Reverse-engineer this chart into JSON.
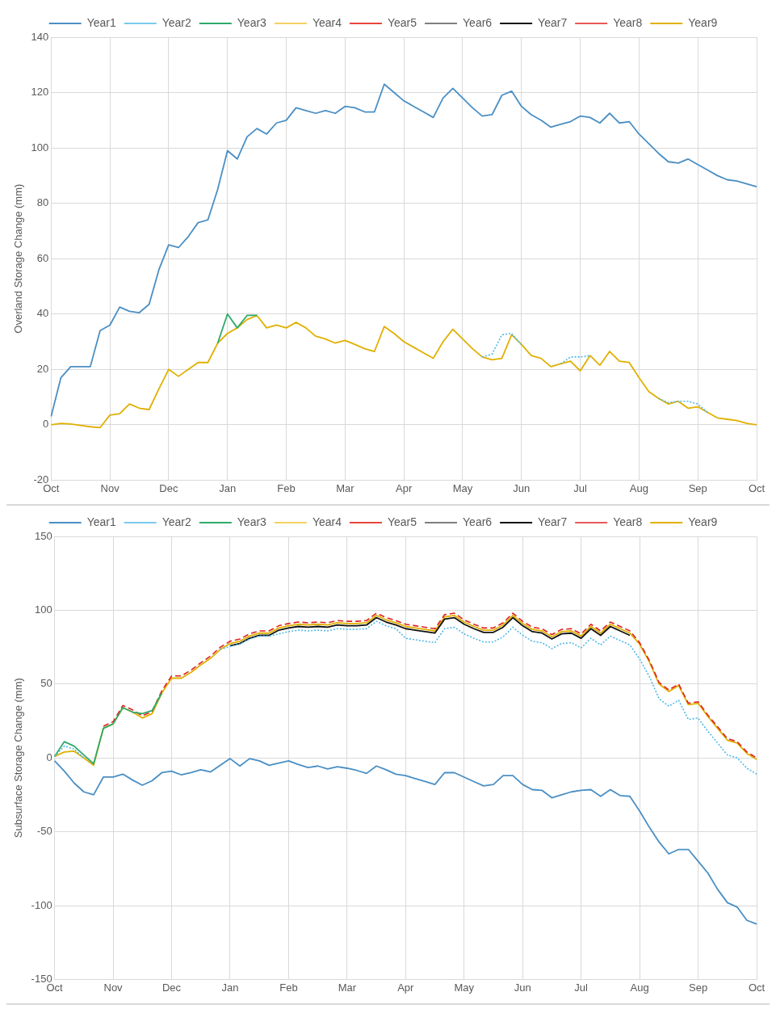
{
  "chart_data": [
    {
      "type": "line",
      "ylabel": "Overland Storage Change (mm)",
      "legend": "top",
      "grid": true,
      "categories": [
        "Oct",
        null,
        null,
        null,
        null,
        null,
        "Nov",
        null,
        null,
        null,
        null,
        null,
        "Dec",
        null,
        null,
        null,
        null,
        null,
        "Jan",
        null,
        null,
        null,
        null,
        null,
        "Feb",
        null,
        null,
        null,
        null,
        null,
        "Mar",
        null,
        null,
        null,
        null,
        null,
        "Apr",
        null,
        null,
        null,
        null,
        null,
        "May",
        null,
        null,
        null,
        null,
        null,
        "Jun",
        null,
        null,
        null,
        null,
        null,
        "Jul",
        null,
        null,
        null,
        null,
        null,
        "Aug",
        null,
        null,
        null,
        null,
        null,
        "Sep",
        null,
        null,
        null,
        null,
        null,
        "Oct"
      ],
      "ylim": [
        -20,
        140
      ],
      "yticks": [
        -20,
        0,
        20,
        40,
        60,
        80,
        100,
        120,
        140
      ],
      "series": [
        {
          "name": "Year1",
          "color": "#4a8fc4",
          "line_style": "solid",
          "values": [
            3,
            17,
            21,
            21,
            21,
            34,
            36,
            42.5,
            41,
            40.5,
            43.5,
            56,
            65,
            64,
            68,
            73,
            74,
            85,
            99,
            96,
            104,
            107,
            105,
            109,
            110,
            114.5,
            113.5,
            112.5,
            113.5,
            112.5,
            115,
            114.5,
            113,
            113,
            123,
            120,
            117,
            115,
            113,
            111,
            118,
            121.5,
            118,
            114.5,
            111.5,
            112,
            119,
            120.5,
            115,
            112,
            110,
            107.5,
            108.5,
            109.5,
            111.5,
            111,
            109,
            112.5,
            109,
            109.5,
            105,
            101.5,
            98,
            95,
            94.5,
            96,
            94,
            92,
            90,
            88.5,
            88,
            87,
            86
          ]
        },
        {
          "name": "Year2",
          "color": "#4fb8e8",
          "line_style": "dotted",
          "values": [
            null,
            null,
            null,
            null,
            null,
            null,
            null,
            null,
            null,
            null,
            null,
            null,
            null,
            null,
            null,
            null,
            null,
            null,
            null,
            null,
            null,
            null,
            null,
            null,
            null,
            null,
            null,
            null,
            null,
            null,
            null,
            null,
            null,
            null,
            null,
            null,
            null,
            null,
            null,
            null,
            null,
            null,
            null,
            null,
            24.5,
            25.5,
            32.5,
            33,
            29,
            null,
            null,
            null,
            22,
            24.5,
            24.5,
            25,
            null,
            null,
            null,
            null,
            null,
            null,
            9.5,
            8,
            8.5,
            8.5,
            7.5,
            4.5,
            null,
            null,
            null,
            null,
            null
          ]
        },
        {
          "name": "Year3",
          "color": "#2eaa6a",
          "line_style": "solid",
          "values": [
            null,
            null,
            null,
            null,
            null,
            null,
            null,
            null,
            null,
            null,
            null,
            null,
            null,
            null,
            null,
            null,
            null,
            29.5,
            40,
            35,
            39.5,
            39.5,
            null,
            null,
            null,
            null,
            null,
            null,
            null,
            null,
            null,
            null,
            null,
            null,
            null,
            null,
            null,
            null,
            null,
            null,
            null,
            null,
            null,
            null,
            null,
            null,
            null,
            null,
            null,
            null,
            null,
            null,
            null,
            null,
            null,
            null,
            null,
            null,
            null,
            null,
            null,
            null,
            null,
            null,
            null,
            null,
            null,
            null,
            null,
            null,
            null,
            null,
            null
          ]
        },
        {
          "name": "Year4",
          "color": "#f2c230",
          "line_style": "dotted",
          "values": [
            null,
            null,
            null,
            null,
            null,
            null,
            null,
            null,
            null,
            null,
            null,
            null,
            null,
            null,
            null,
            null,
            null,
            null,
            null,
            null,
            null,
            null,
            null,
            null,
            null,
            null,
            null,
            null,
            null,
            null,
            null,
            null,
            null,
            null,
            null,
            null,
            null,
            null,
            null,
            null,
            null,
            null,
            null,
            null,
            null,
            null,
            null,
            null,
            null,
            null,
            null,
            null,
            null,
            null,
            null,
            null,
            null,
            null,
            null,
            null,
            null,
            null,
            null,
            null,
            null,
            null,
            null,
            null,
            null,
            null,
            null,
            null,
            null
          ]
        },
        {
          "name": "Year5",
          "color": "#e8453c",
          "line_style": "solid",
          "values": [
            null,
            null,
            null,
            null,
            null,
            null,
            null,
            null,
            null,
            null,
            null,
            null,
            null,
            null,
            null,
            null,
            null,
            null,
            null,
            null,
            null,
            null,
            null,
            null,
            null,
            null,
            null,
            null,
            null,
            null,
            null,
            null,
            null,
            null,
            null,
            null,
            null,
            null,
            null,
            null,
            null,
            null,
            null,
            null,
            null,
            null,
            null,
            null,
            null,
            null,
            null,
            null,
            null,
            null,
            null,
            null,
            null,
            null,
            null,
            null,
            null,
            null,
            null,
            null,
            null,
            null,
            null,
            null,
            null,
            null,
            null,
            null,
            null
          ]
        },
        {
          "name": "Year6",
          "color": "#555555",
          "line_style": "dashed",
          "values": [
            null,
            null,
            null,
            null,
            null,
            null,
            null,
            null,
            null,
            null,
            null,
            null,
            null,
            null,
            null,
            null,
            null,
            null,
            null,
            null,
            null,
            null,
            null,
            null,
            null,
            null,
            null,
            null,
            null,
            null,
            null,
            null,
            null,
            null,
            null,
            null,
            null,
            null,
            null,
            null,
            null,
            null,
            null,
            null,
            null,
            null,
            null,
            null,
            null,
            null,
            null,
            null,
            null,
            null,
            null,
            null,
            null,
            null,
            null,
            null,
            null,
            null,
            null,
            null,
            null,
            null,
            null,
            null,
            null,
            null,
            null,
            null,
            null
          ]
        },
        {
          "name": "Year7",
          "color": "#111111",
          "line_style": "solid",
          "values": [
            null,
            null,
            null,
            null,
            null,
            null,
            null,
            null,
            null,
            null,
            null,
            null,
            null,
            null,
            null,
            null,
            null,
            null,
            null,
            null,
            null,
            null,
            null,
            null,
            null,
            null,
            null,
            null,
            null,
            null,
            null,
            null,
            null,
            null,
            null,
            null,
            null,
            null,
            null,
            null,
            null,
            null,
            null,
            null,
            null,
            null,
            null,
            null,
            null,
            null,
            null,
            null,
            null,
            null,
            null,
            null,
            null,
            null,
            null,
            null,
            null,
            null,
            null,
            null,
            null,
            null,
            null,
            null,
            null,
            null,
            null,
            null,
            null
          ]
        },
        {
          "name": "Year8",
          "color": "#e02020",
          "line_style": "dashed",
          "values": [
            null,
            null,
            null,
            null,
            null,
            null,
            null,
            null,
            null,
            null,
            null,
            null,
            null,
            null,
            null,
            null,
            null,
            null,
            null,
            null,
            null,
            null,
            null,
            null,
            null,
            null,
            null,
            null,
            null,
            null,
            null,
            null,
            null,
            null,
            null,
            null,
            null,
            null,
            null,
            null,
            null,
            null,
            null,
            null,
            null,
            null,
            null,
            null,
            null,
            null,
            null,
            null,
            null,
            null,
            null,
            null,
            null,
            null,
            null,
            null,
            null,
            null,
            null,
            null,
            null,
            null,
            null,
            null,
            null,
            null,
            null,
            null,
            null
          ]
        },
        {
          "name": "Year9",
          "color": "#e0b000",
          "line_style": "solid",
          "values": [
            0,
            0.5,
            0.3,
            -0.2,
            -0.7,
            -1,
            3.5,
            4,
            7.5,
            6,
            5.5,
            13,
            20,
            17.5,
            20,
            22.5,
            22.5,
            29.5,
            33,
            35,
            38,
            39.5,
            35,
            36,
            35,
            37,
            35,
            32,
            31,
            29.5,
            30.5,
            29,
            27.5,
            26.5,
            35.5,
            33,
            30,
            28,
            26,
            24,
            30,
            34.5,
            31,
            27.5,
            24.5,
            23.5,
            24,
            32.5,
            29,
            25,
            24,
            21,
            22,
            23,
            19.5,
            25,
            21.5,
            26.5,
            23,
            22.5,
            17,
            12,
            9.5,
            7.5,
            8.5,
            6,
            6.5,
            4.5,
            2.5,
            2,
            1.5,
            0.5,
            0
          ]
        }
      ]
    },
    {
      "type": "line",
      "ylabel": "Subsurface Storage Change (mm)",
      "legend": "top",
      "grid": true,
      "categories": [
        "Oct",
        null,
        null,
        null,
        null,
        null,
        "Nov",
        null,
        null,
        null,
        null,
        null,
        "Dec",
        null,
        null,
        null,
        null,
        null,
        "Jan",
        null,
        null,
        null,
        null,
        null,
        "Feb",
        null,
        null,
        null,
        null,
        null,
        "Mar",
        null,
        null,
        null,
        null,
        null,
        "Apr",
        null,
        null,
        null,
        null,
        null,
        "May",
        null,
        null,
        null,
        null,
        null,
        "Jun",
        null,
        null,
        null,
        null,
        null,
        "Jul",
        null,
        null,
        null,
        null,
        null,
        "Aug",
        null,
        null,
        null,
        null,
        null,
        "Sep",
        null,
        null,
        null,
        null,
        null,
        "Oct"
      ],
      "ylim": [
        -150,
        150
      ],
      "yticks": [
        -150,
        -100,
        -50,
        0,
        50,
        100,
        150
      ],
      "series": [
        {
          "name": "Year1",
          "color": "#4a8fc4",
          "line_style": "solid",
          "values": [
            -2,
            -9,
            -17,
            -23,
            -25,
            -13,
            -13,
            -11,
            -15,
            -18.5,
            -15.5,
            -10,
            -9,
            -11.5,
            -10,
            -8,
            -9.5,
            -5,
            -0.5,
            -5.5,
            -0.5,
            -2,
            -5,
            -3.5,
            -2,
            -4.5,
            -6.5,
            -5.5,
            -7.5,
            -6,
            -7,
            -8.5,
            -10.5,
            -5.5,
            -8,
            -11,
            -12,
            -14,
            -16,
            -18,
            -10,
            -10,
            -13,
            -16,
            -19,
            -18,
            -12,
            -12,
            -18,
            -21.5,
            -22,
            -27,
            -25,
            -23,
            -22,
            -21.5,
            -26,
            -21.5,
            -25.5,
            -26,
            -36,
            -47,
            -57,
            -65,
            -62,
            -62,
            -70,
            -78,
            -89,
            -98,
            -101,
            -110,
            -112.5
          ]
        },
        {
          "name": "Year2",
          "color": "#4fb8e8",
          "line_style": "dotted",
          "values": [
            1,
            8,
            6,
            0,
            null,
            null,
            null,
            null,
            null,
            null,
            null,
            null,
            null,
            null,
            null,
            null,
            null,
            73.5,
            75.5,
            77,
            80.5,
            82.5,
            82.5,
            84,
            85.5,
            86.5,
            86,
            86.5,
            86,
            87.5,
            87,
            87,
            87.5,
            92.5,
            89.5,
            87.5,
            81,
            80,
            79,
            78,
            87.5,
            88.5,
            84,
            81,
            78.5,
            78.5,
            82,
            88.5,
            83,
            79,
            78,
            74,
            77.5,
            78,
            74.5,
            81,
            76.5,
            82.5,
            79.5,
            76.5,
            67,
            55,
            40,
            35,
            39,
            26,
            27,
            18,
            10,
            2,
            0,
            -7,
            -11
          ]
        },
        {
          "name": "Year3",
          "color": "#2eaa6a",
          "line_style": "solid",
          "values": [
            1,
            11,
            8,
            2,
            -4,
            20,
            23,
            34,
            31,
            30,
            32,
            44,
            null,
            null,
            null,
            null,
            null,
            null,
            null,
            null,
            null,
            null,
            null,
            null,
            null,
            null,
            null,
            null,
            null,
            null,
            null,
            null,
            null,
            null,
            null,
            null,
            null,
            null,
            null,
            null,
            null,
            null,
            null,
            null,
            null,
            null,
            null,
            null,
            null,
            null,
            null,
            null,
            null,
            null,
            null,
            null,
            null,
            null,
            null,
            null,
            null,
            null,
            null,
            null,
            null,
            null,
            null,
            null,
            null,
            null,
            null,
            null,
            null
          ]
        },
        {
          "name": "Year4",
          "color": "#f2c230",
          "line_style": "dotted",
          "values": [
            null,
            null,
            null,
            null,
            null,
            null,
            null,
            null,
            null,
            null,
            null,
            null,
            null,
            null,
            null,
            null,
            null,
            null,
            null,
            null,
            null,
            null,
            null,
            null,
            null,
            null,
            null,
            null,
            null,
            null,
            null,
            null,
            null,
            null,
            null,
            null,
            null,
            null,
            null,
            null,
            null,
            null,
            null,
            null,
            null,
            null,
            null,
            null,
            null,
            null,
            null,
            null,
            null,
            null,
            null,
            null,
            null,
            null,
            null,
            null,
            null,
            null,
            null,
            null,
            null,
            null,
            null,
            null,
            null,
            null,
            null,
            null,
            null
          ]
        },
        {
          "name": "Year5",
          "color": "#e8453c",
          "line_style": "solid",
          "values": [
            null,
            null,
            null,
            null,
            null,
            null,
            null,
            null,
            null,
            null,
            null,
            null,
            null,
            null,
            null,
            null,
            null,
            null,
            null,
            null,
            null,
            null,
            null,
            null,
            null,
            null,
            null,
            null,
            null,
            null,
            null,
            null,
            null,
            null,
            null,
            null,
            null,
            null,
            null,
            null,
            null,
            null,
            null,
            null,
            null,
            null,
            null,
            null,
            null,
            null,
            null,
            null,
            null,
            null,
            null,
            null,
            null,
            null,
            null,
            null,
            null,
            null,
            null,
            null,
            null,
            null,
            null,
            null,
            null,
            null,
            null,
            null,
            null
          ]
        },
        {
          "name": "Year6",
          "color": "#555555",
          "line_style": "dashed",
          "values": [
            null,
            null,
            null,
            null,
            null,
            null,
            null,
            null,
            null,
            null,
            null,
            null,
            null,
            null,
            null,
            null,
            null,
            null,
            null,
            null,
            null,
            null,
            null,
            null,
            null,
            null,
            null,
            null,
            null,
            null,
            null,
            null,
            null,
            null,
            null,
            null,
            null,
            null,
            null,
            null,
            null,
            null,
            null,
            null,
            null,
            null,
            null,
            null,
            null,
            null,
            null,
            null,
            null,
            null,
            null,
            null,
            null,
            null,
            null,
            null,
            null,
            null,
            null,
            null,
            null,
            null,
            null,
            null,
            null,
            null,
            null,
            null,
            null
          ]
        },
        {
          "name": "Year7",
          "color": "#111111",
          "line_style": "solid",
          "values": [
            null,
            null,
            null,
            null,
            null,
            null,
            null,
            null,
            null,
            null,
            null,
            null,
            null,
            null,
            null,
            null,
            null,
            null,
            76,
            77.5,
            81,
            83,
            83,
            86.5,
            88,
            89,
            88.5,
            89,
            88.5,
            90,
            89.5,
            89.5,
            90,
            95,
            92,
            90,
            87.5,
            86.5,
            85.5,
            84.5,
            94,
            95,
            90.5,
            87.5,
            85,
            85,
            88.5,
            95,
            89.5,
            85.5,
            84.5,
            80.5,
            84,
            84.5,
            81,
            87.5,
            83,
            89,
            86,
            83,
            null,
            null,
            null,
            null,
            null,
            null,
            null,
            null,
            null,
            null,
            null,
            null,
            null
          ]
        },
        {
          "name": "Year8",
          "color": "#e02020",
          "line_style": "dashed",
          "values": [
            null,
            null,
            null,
            null,
            null,
            21.5,
            24.5,
            35.5,
            32.5,
            28.5,
            31.5,
            45.5,
            55.5,
            55.5,
            59.5,
            64.5,
            69,
            75,
            79,
            80.5,
            84,
            86,
            86,
            89.5,
            91,
            92,
            91.5,
            92,
            91.5,
            93,
            92.5,
            92.5,
            93,
            98,
            95,
            93,
            90.5,
            89.5,
            88.5,
            87.5,
            97,
            98,
            93.5,
            90.5,
            88,
            88,
            91.5,
            98,
            92.5,
            88.5,
            87.5,
            83.5,
            87,
            87.5,
            84,
            90.5,
            86,
            92,
            89,
            86,
            78,
            66,
            51,
            46,
            50,
            37,
            38,
            29,
            21,
            13,
            11,
            4,
            0
          ]
        },
        {
          "name": "Year9",
          "color": "#e0b000",
          "line_style": "solid",
          "values": [
            1,
            4,
            4.5,
            0,
            -5,
            20,
            23,
            34,
            31,
            27,
            30,
            44,
            54,
            54,
            58,
            63,
            67.5,
            73.5,
            77.5,
            79,
            82.5,
            84.5,
            84.5,
            88,
            89.5,
            90.5,
            90,
            90.5,
            90,
            91.5,
            91,
            91,
            91.5,
            96.5,
            93.5,
            91.5,
            89,
            88,
            87,
            86,
            95.5,
            96.5,
            92,
            89,
            86.5,
            86.5,
            90,
            96.5,
            91,
            87,
            86,
            82,
            85.5,
            86,
            82.5,
            89,
            84.5,
            90.5,
            87.5,
            84.5,
            77,
            65,
            50,
            45,
            49,
            36,
            37,
            28,
            20,
            12,
            10,
            3,
            -1
          ]
        }
      ]
    }
  ]
}
